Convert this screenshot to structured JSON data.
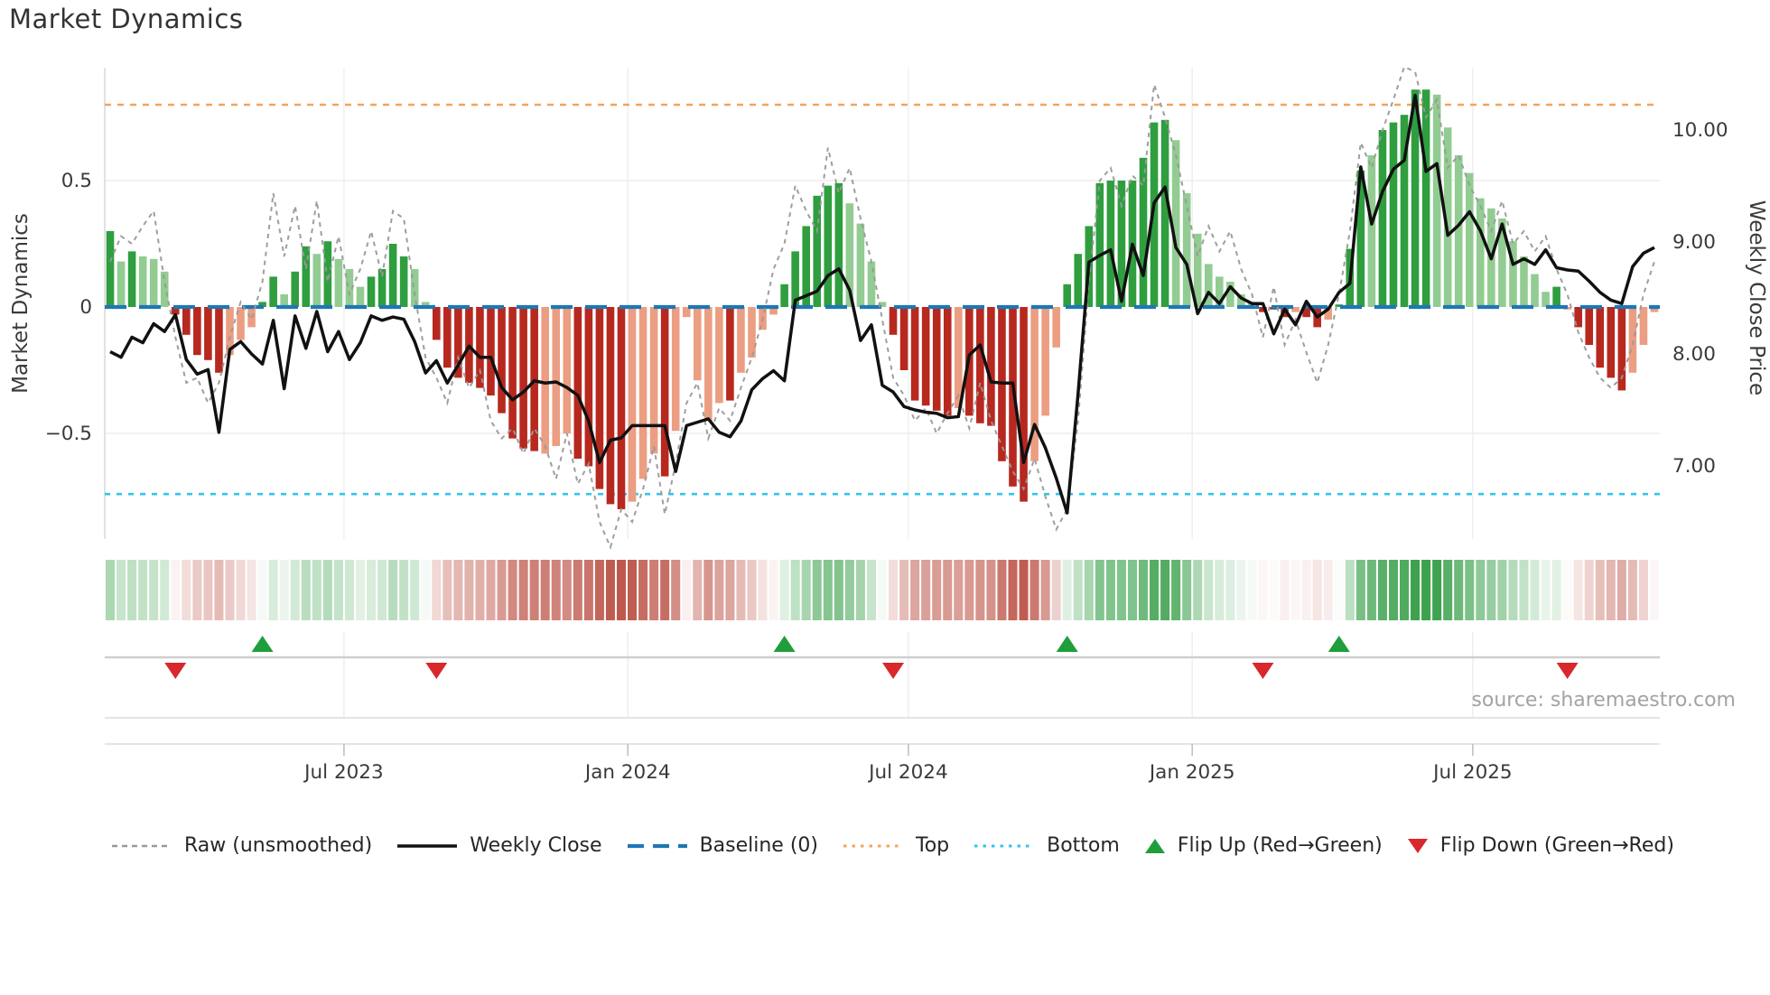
{
  "title": "Market Dynamics",
  "source": "source: sharemaestro.com",
  "axes": {
    "left_label": "Market Dynamics",
    "right_label": "Weekly Close Price",
    "left_ticks": [
      {
        "v": 0.5,
        "label": "0.5"
      },
      {
        "v": 0,
        "label": "0"
      },
      {
        "v": -0.5,
        "label": "−0.5"
      }
    ],
    "right_ticks": [
      {
        "v": 10,
        "label": "10.00"
      },
      {
        "v": 9,
        "label": "9.00"
      },
      {
        "v": 8,
        "label": "8.00"
      },
      {
        "v": 7,
        "label": "7.00"
      }
    ]
  },
  "legend": {
    "items": [
      {
        "type": "dash-gray",
        "label": "Raw (unsmoothed)"
      },
      {
        "type": "line-black",
        "label": "Weekly Close"
      },
      {
        "type": "dash-blue",
        "label": "Baseline (0)"
      },
      {
        "type": "dots-orange",
        "label": "Top"
      },
      {
        "type": "dots-cyan",
        "label": "Bottom"
      },
      {
        "type": "tri-up",
        "label": "Flip Up (Red→Green)"
      },
      {
        "type": "tri-down",
        "label": "Flip Down (Green→Red)"
      }
    ]
  },
  "colors": {
    "bar_green_dark": "#2f9e3f",
    "bar_green_light": "#92cc92",
    "bar_red_dark": "#b7281f",
    "bar_red_light": "#eb9e82",
    "weekly_close": "#111111",
    "raw_line": "#999999",
    "baseline": "#1f77b4",
    "top_line": "#f2a45c",
    "bottom_line": "#31c5e9",
    "flip_up": "#1f9e3c",
    "flip_down": "#d8282b",
    "grid": "#ededed",
    "spine": "#d8d8d8",
    "tick_text": "#3a3a3a"
  },
  "chart_data": {
    "type": "bar+line",
    "title": "Market Dynamics",
    "ylabel_left": "Market Dynamics",
    "ylabel_right": "Weekly Close Price",
    "n_weeks": 143,
    "baseline": 0,
    "top_level": 0.8,
    "bottom_level": -0.74,
    "ylim_left": [
      -0.92,
      0.945
    ],
    "ylim_right": [
      6.34,
      10.54
    ],
    "x_tick_labels": [
      "Jul 2023",
      "Jan 2024",
      "Jul 2024",
      "Jan 2025",
      "Jul 2025"
    ],
    "x_tick_weeks": [
      21.5,
      47.6,
      73.4,
      99.5,
      125.3
    ],
    "flip_up_weeks": [
      14,
      62,
      88,
      113
    ],
    "flip_down_weeks": [
      6,
      30,
      72,
      106,
      134
    ],
    "bars_smoothed": [
      0.3,
      0.18,
      0.22,
      0.2,
      0.19,
      0.14,
      -0.03,
      -0.11,
      -0.19,
      -0.21,
      -0.26,
      -0.19,
      -0.13,
      -0.08,
      0.02,
      0.12,
      0.05,
      0.14,
      0.24,
      0.21,
      0.26,
      0.19,
      0.15,
      0.08,
      0.12,
      0.15,
      0.25,
      0.2,
      0.15,
      0.02,
      -0.13,
      -0.24,
      -0.28,
      -0.3,
      -0.32,
      -0.35,
      -0.42,
      -0.52,
      -0.56,
      -0.57,
      -0.58,
      -0.55,
      -0.5,
      -0.6,
      -0.63,
      -0.72,
      -0.78,
      -0.8,
      -0.77,
      -0.68,
      -0.58,
      -0.67,
      -0.49,
      -0.04,
      -0.29,
      -0.45,
      -0.38,
      -0.37,
      -0.26,
      -0.2,
      -0.09,
      -0.03,
      0.09,
      0.22,
      0.32,
      0.44,
      0.48,
      0.49,
      0.41,
      0.33,
      0.18,
      0.02,
      -0.11,
      -0.25,
      -0.37,
      -0.39,
      -0.41,
      -0.43,
      -0.4,
      -0.43,
      -0.46,
      -0.47,
      -0.61,
      -0.71,
      -0.77,
      -0.61,
      -0.43,
      -0.16,
      0.09,
      0.21,
      0.32,
      0.49,
      0.5,
      0.5,
      0.5,
      0.59,
      0.73,
      0.74,
      0.66,
      0.45,
      0.29,
      0.17,
      0.12,
      0.1,
      0.05,
      0.02,
      -0.02,
      -0.01,
      -0.04,
      -0.02,
      -0.04,
      -0.08,
      -0.05,
      0.01,
      0.23,
      0.54,
      0.6,
      0.7,
      0.73,
      0.76,
      0.86,
      0.86,
      0.84,
      0.71,
      0.6,
      0.53,
      0.43,
      0.39,
      0.35,
      0.26,
      0.2,
      0.13,
      0.06,
      0.08,
      -0.01,
      -0.08,
      -0.15,
      -0.24,
      -0.28,
      -0.33,
      -0.26,
      -0.15,
      -0.02
    ],
    "bar_dark_shade": [
      1,
      0,
      1,
      0,
      0,
      0,
      1,
      1,
      1,
      1,
      1,
      0,
      0,
      0,
      1,
      1,
      0,
      1,
      1,
      0,
      1,
      0,
      0,
      0,
      1,
      1,
      1,
      1,
      0,
      0,
      1,
      1,
      1,
      1,
      1,
      1,
      1,
      1,
      1,
      1,
      0,
      0,
      0,
      1,
      1,
      1,
      1,
      1,
      0,
      0,
      0,
      1,
      0,
      0,
      0,
      0,
      0,
      1,
      0,
      0,
      0,
      0,
      1,
      1,
      1,
      1,
      1,
      1,
      0,
      0,
      0,
      0,
      1,
      1,
      1,
      1,
      1,
      1,
      0,
      1,
      1,
      1,
      1,
      1,
      1,
      0,
      0,
      0,
      1,
      1,
      1,
      1,
      1,
      1,
      1,
      1,
      1,
      1,
      0,
      0,
      0,
      0,
      0,
      0,
      0,
      0,
      1,
      1,
      1,
      0,
      1,
      1,
      0,
      1,
      1,
      1,
      0,
      1,
      1,
      1,
      1,
      1,
      0,
      0,
      0,
      0,
      0,
      0,
      0,
      0,
      0,
      0,
      0,
      1,
      0,
      1,
      1,
      1,
      1,
      1,
      0,
      0,
      0
    ],
    "raw_unsmoothed": [
      0.18,
      0.28,
      0.25,
      0.32,
      0.38,
      0.1,
      -0.12,
      -0.3,
      -0.28,
      -0.38,
      -0.3,
      -0.12,
      0.02,
      -0.05,
      0.1,
      0.45,
      0.2,
      0.4,
      0.15,
      0.42,
      0.1,
      0.28,
      0.05,
      0.15,
      0.3,
      0.12,
      0.38,
      0.35,
      0.05,
      -0.2,
      -0.28,
      -0.38,
      -0.2,
      -0.32,
      -0.25,
      -0.45,
      -0.52,
      -0.48,
      -0.58,
      -0.48,
      -0.55,
      -0.68,
      -0.5,
      -0.7,
      -0.62,
      -0.85,
      -0.95,
      -0.8,
      -0.85,
      -0.72,
      -0.55,
      -0.82,
      -0.62,
      -0.38,
      -0.3,
      -0.52,
      -0.4,
      -0.45,
      -0.32,
      -0.2,
      -0.05,
      0.15,
      0.25,
      0.48,
      0.38,
      0.3,
      0.63,
      0.45,
      0.55,
      0.35,
      0.18,
      -0.05,
      -0.28,
      -0.35,
      -0.45,
      -0.4,
      -0.5,
      -0.42,
      -0.35,
      -0.48,
      -0.3,
      -0.45,
      -0.55,
      -0.65,
      -0.72,
      -0.6,
      -0.75,
      -0.88,
      -0.8,
      -0.45,
      0.1,
      0.5,
      0.55,
      0.4,
      0.52,
      0.48,
      0.88,
      0.75,
      0.6,
      0.4,
      0.2,
      0.32,
      0.22,
      0.3,
      0.15,
      0.05,
      -0.12,
      0.08,
      -0.15,
      -0.05,
      -0.18,
      -0.3,
      -0.15,
      0.05,
      0.3,
      0.65,
      0.55,
      0.7,
      0.82,
      0.95,
      0.93,
      0.75,
      0.82,
      0.55,
      0.6,
      0.48,
      0.4,
      0.3,
      0.42,
      0.25,
      0.3,
      0.22,
      0.28,
      0.15,
      0.05,
      -0.1,
      -0.2,
      -0.28,
      -0.32,
      -0.28,
      -0.15,
      0.05,
      0.18
    ],
    "weekly_close": [
      8.02,
      7.97,
      8.15,
      8.1,
      8.27,
      8.2,
      8.35,
      7.95,
      7.82,
      7.86,
      7.3,
      8.04,
      8.11,
      8.0,
      7.91,
      8.3,
      7.69,
      8.34,
      8.05,
      8.38,
      8.02,
      8.2,
      7.95,
      8.1,
      8.34,
      8.3,
      8.33,
      8.31,
      8.11,
      7.83,
      7.94,
      7.74,
      7.9,
      8.07,
      7.97,
      7.97,
      7.7,
      7.59,
      7.66,
      7.76,
      7.74,
      7.75,
      7.7,
      7.63,
      7.4,
      7.03,
      7.23,
      7.25,
      7.36,
      7.36,
      7.36,
      7.36,
      6.95,
      7.36,
      7.39,
      7.42,
      7.3,
      7.26,
      7.4,
      7.68,
      7.78,
      7.85,
      7.76,
      8.48,
      8.52,
      8.56,
      8.7,
      8.76,
      8.57,
      8.12,
      8.26,
      7.72,
      7.66,
      7.53,
      7.5,
      7.48,
      7.47,
      7.43,
      7.44,
      7.99,
      8.08,
      7.75,
      7.74,
      7.74,
      7.03,
      7.37,
      7.16,
      6.89,
      6.58,
      7.64,
      8.82,
      8.88,
      8.93,
      8.47,
      8.98,
      8.7,
      9.35,
      9.49,
      8.95,
      8.8,
      8.36,
      8.55,
      8.45,
      8.6,
      8.5,
      8.45,
      8.45,
      8.18,
      8.4,
      8.26,
      8.47,
      8.33,
      8.4,
      8.55,
      8.63,
      9.67,
      9.16,
      9.45,
      9.65,
      9.73,
      10.31,
      9.63,
      9.7,
      9.06,
      9.15,
      9.27,
      9.1,
      8.85,
      9.16,
      8.8,
      8.85,
      8.8,
      8.93,
      8.77,
      8.75,
      8.74,
      8.65,
      8.55,
      8.48,
      8.45,
      8.78,
      8.9,
      8.95
    ]
  }
}
